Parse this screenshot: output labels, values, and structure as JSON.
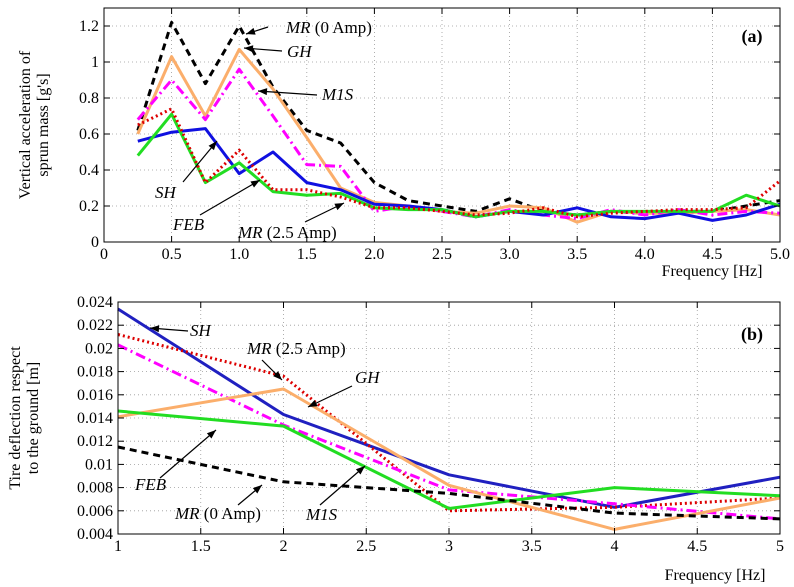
{
  "chart_data": [
    {
      "panel_label": "(a)",
      "type": "line",
      "xlabel": "Frequency [Hz]",
      "ylabel_lines": [
        "Vertical acceleration of",
        "sprun mass [g's]"
      ],
      "xlim": [
        0,
        5
      ],
      "ylim": [
        0,
        1.3
      ],
      "grid": true,
      "x_ticks": [
        "0",
        "0.5",
        "1.0",
        "1.5",
        "2.0",
        "2.5",
        "3.0",
        "3.5",
        "4.0",
        "4.5",
        "5.0"
      ],
      "y_ticks": [
        "0",
        "0.2",
        "0.4",
        "0.6",
        "0.8",
        "1",
        "1.2"
      ],
      "x": [
        0.25,
        0.5,
        0.75,
        1.0,
        1.25,
        1.5,
        1.75,
        2.0,
        2.25,
        2.5,
        2.75,
        3.0,
        3.25,
        3.5,
        3.75,
        4.0,
        4.25,
        4.5,
        4.75,
        5.0
      ],
      "series": [
        {
          "key": "MR0",
          "color": "#000000",
          "dash": "7,5",
          "values": [
            0.62,
            1.22,
            0.88,
            1.2,
            0.86,
            0.62,
            0.55,
            0.33,
            0.23,
            0.2,
            0.17,
            0.24,
            0.17,
            0.15,
            0.17,
            0.16,
            0.17,
            0.17,
            0.2,
            0.23
          ]
        },
        {
          "key": "GH",
          "color": "#FBAE6B",
          "dash": "",
          "values": [
            0.6,
            1.03,
            0.7,
            1.07,
            0.85,
            0.58,
            0.3,
            0.22,
            0.2,
            0.17,
            0.16,
            0.2,
            0.19,
            0.11,
            0.17,
            0.16,
            0.16,
            0.17,
            0.18,
            0.15
          ]
        },
        {
          "key": "M1S",
          "color": "#FF00FF",
          "dash": "10,4,2,4",
          "values": [
            0.68,
            0.9,
            0.68,
            0.96,
            0.7,
            0.43,
            0.42,
            0.17,
            0.2,
            0.17,
            0.14,
            0.18,
            0.15,
            0.13,
            0.18,
            0.15,
            0.18,
            0.15,
            0.17,
            0.16
          ]
        },
        {
          "key": "SH",
          "color": "#1010E0",
          "dash": "",
          "values": [
            0.56,
            0.61,
            0.63,
            0.38,
            0.5,
            0.33,
            0.29,
            0.21,
            0.2,
            0.18,
            0.14,
            0.17,
            0.15,
            0.19,
            0.14,
            0.13,
            0.16,
            0.12,
            0.15,
            0.21
          ]
        },
        {
          "key": "FEB",
          "color": "#22DD22",
          "dash": "",
          "values": [
            0.48,
            0.71,
            0.33,
            0.44,
            0.28,
            0.26,
            0.27,
            0.19,
            0.18,
            0.18,
            0.14,
            0.17,
            0.17,
            0.15,
            0.17,
            0.17,
            0.17,
            0.17,
            0.26,
            0.2
          ]
        },
        {
          "key": "MR25",
          "color": "#DD0000",
          "dash": "2,3",
          "values": [
            0.65,
            0.74,
            0.33,
            0.51,
            0.29,
            0.29,
            0.25,
            0.19,
            0.19,
            0.17,
            0.15,
            0.16,
            0.19,
            0.14,
            0.16,
            0.17,
            0.18,
            0.18,
            0.19,
            0.34
          ]
        }
      ],
      "annotations": [
        {
          "italic": "MR",
          "rest": " (0 Amp)"
        },
        {
          "italic": "GH",
          "rest": ""
        },
        {
          "italic": "M1S",
          "rest": ""
        },
        {
          "italic": "SH",
          "rest": ""
        },
        {
          "italic": "FEB",
          "rest": ""
        },
        {
          "italic": "MR",
          "rest": " (2.5 Amp)"
        }
      ]
    },
    {
      "panel_label": "(b)",
      "type": "line",
      "xlabel": "Frequency [Hz]",
      "ylabel_lines": [
        "Tire deflection respect",
        "to the ground [m]"
      ],
      "xlim": [
        1,
        5
      ],
      "ylim": [
        0.004,
        0.024
      ],
      "grid": true,
      "x_ticks": [
        "1",
        "1.5",
        "2",
        "2.5",
        "3",
        "3.5",
        "4",
        "4.5",
        "5"
      ],
      "y_ticks": [
        "0.004",
        "0.006",
        "0.008",
        "0.01",
        "0.012",
        "0.014",
        "0.016",
        "0.018",
        "0.02",
        "0.022",
        "0.024"
      ],
      "x": [
        1,
        2,
        3,
        4,
        5
      ],
      "series": [
        {
          "key": "SH",
          "color": "#2020C0",
          "dash": "",
          "values": [
            0.0234,
            0.0143,
            0.0091,
            0.0063,
            0.0089
          ]
        },
        {
          "key": "MR25",
          "color": "#DD0000",
          "dash": "2,3",
          "values": [
            0.0212,
            0.0176,
            0.006,
            0.0063,
            0.0071
          ]
        },
        {
          "key": "M1S",
          "color": "#FF00FF",
          "dash": "10,4,2,4",
          "values": [
            0.0203,
            0.0134,
            0.0078,
            0.0066,
            0.0053
          ]
        },
        {
          "key": "GH",
          "color": "#FBAE6B",
          "dash": "",
          "values": [
            0.0141,
            0.0165,
            0.0082,
            0.0044,
            0.0071
          ]
        },
        {
          "key": "FEB",
          "color": "#22DD22",
          "dash": "",
          "values": [
            0.0146,
            0.0133,
            0.0062,
            0.008,
            0.0073
          ]
        },
        {
          "key": "MR0",
          "color": "#000000",
          "dash": "7,5",
          "values": [
            0.0115,
            0.0085,
            0.0075,
            0.0058,
            0.0053
          ]
        }
      ],
      "annotations": [
        {
          "italic": "SH",
          "rest": ""
        },
        {
          "italic": "MR",
          "rest": " (2.5 Amp)"
        },
        {
          "italic": "GH",
          "rest": ""
        },
        {
          "italic": "FEB",
          "rest": ""
        },
        {
          "italic": "MR",
          "rest": " (0 Amp)"
        },
        {
          "italic": "M1S",
          "rest": ""
        }
      ]
    }
  ]
}
